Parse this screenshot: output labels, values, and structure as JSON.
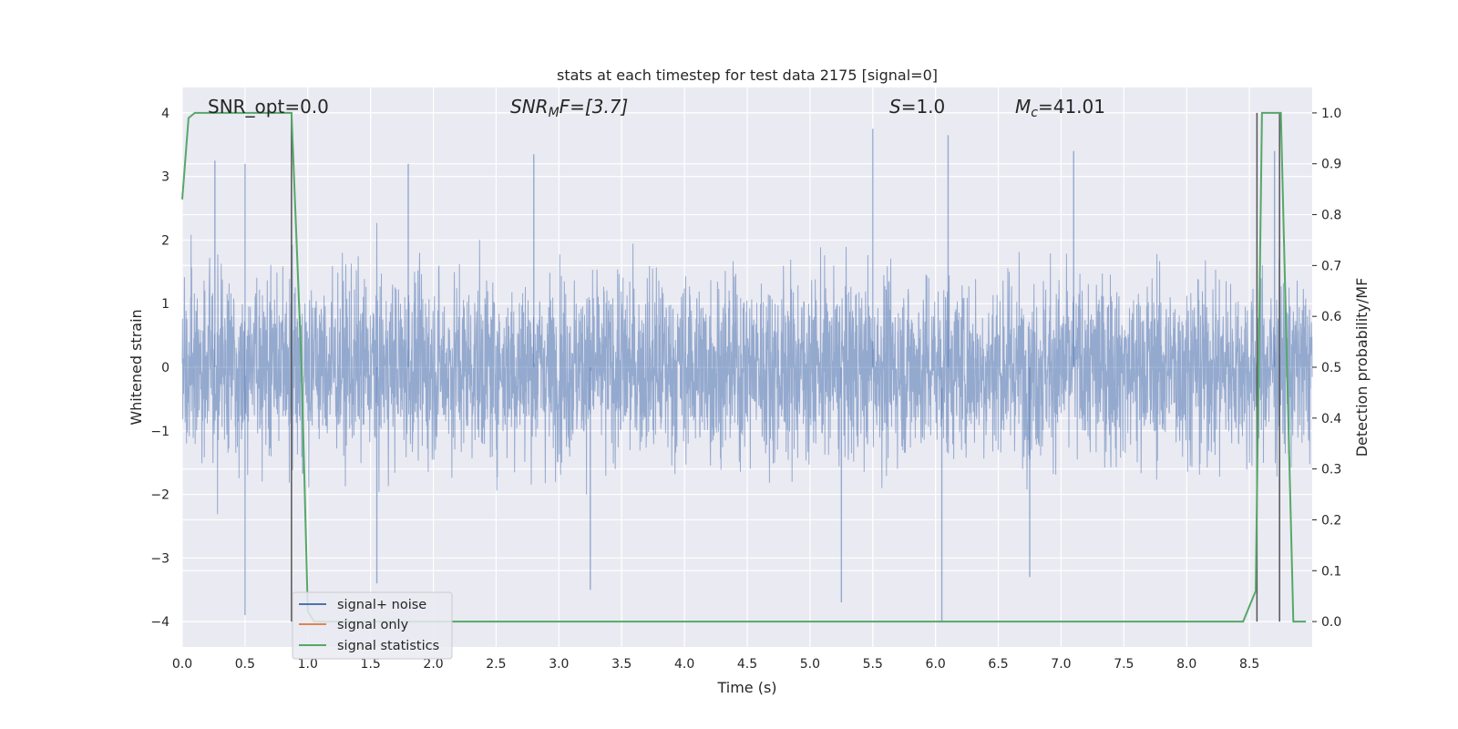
{
  "chart_data": {
    "type": "line",
    "title": "stats at each timestep for test data 2175 [signal=0]",
    "xlabel": "Time (s)",
    "ylabel": "Whitened strain",
    "ylabel_right": "Detection probability/MF",
    "xlim": [
      0.0,
      9.0
    ],
    "ylim": [
      -4.4,
      4.4
    ],
    "ylim_right": [
      -0.05,
      1.05
    ],
    "x_ticks": [
      "0.0",
      "0.5",
      "1.0",
      "1.5",
      "2.0",
      "2.5",
      "3.0",
      "3.5",
      "4.0",
      "4.5",
      "5.0",
      "5.5",
      "6.0",
      "6.5",
      "7.0",
      "7.5",
      "8.0",
      "8.5"
    ],
    "y_ticks": [
      "4",
      "3",
      "2",
      "1",
      "0",
      "−1",
      "−2",
      "−3",
      "−4"
    ],
    "y_right_ticks": [
      "1.0",
      "0.9",
      "0.8",
      "0.7",
      "0.6",
      "0.5",
      "0.4",
      "0.3",
      "0.2",
      "0.1",
      "0.0"
    ],
    "grid": true,
    "legend_position": "lower-left",
    "annotations": {
      "snr_opt": "SNR_opt=0.0",
      "snr_mf_main": "SNR",
      "snr_mf_sub": "M",
      "snr_mf_rest": "F=[3.7]",
      "s_main": "S",
      "s_rest": "=1.0",
      "mc_main": "M",
      "mc_sub": "c",
      "mc_rest": "=41.01"
    },
    "vlines_x": [
      0.87,
      8.56,
      8.74
    ],
    "series": [
      {
        "name": "signal+ noise",
        "color": "#4c72b0",
        "axis": "left",
        "description_range": [
          -4.0,
          3.9
        ],
        "peak_positive": [
          [
            0.26,
            3.25
          ],
          [
            0.5,
            3.2
          ],
          [
            1.8,
            3.2
          ],
          [
            2.8,
            3.35
          ],
          [
            5.5,
            3.75
          ],
          [
            6.1,
            3.65
          ],
          [
            7.1,
            3.4
          ],
          [
            8.7,
            3.4
          ]
        ],
        "peak_negative": [
          [
            0.5,
            -3.9
          ],
          [
            1.55,
            -3.4
          ],
          [
            3.25,
            -3.5
          ],
          [
            5.25,
            -3.7
          ],
          [
            6.05,
            -4.0
          ],
          [
            6.75,
            -3.3
          ]
        ]
      },
      {
        "name": "signal only",
        "color": "#dd8452",
        "axis": "left",
        "x": [],
        "y": []
      },
      {
        "name": "signal statistics",
        "color": "#55a868",
        "axis": "right",
        "x": [
          0.0,
          0.05,
          0.1,
          0.2,
          0.3,
          0.4,
          0.5,
          0.6,
          0.7,
          0.8,
          0.87,
          0.95,
          1.0,
          1.05,
          1.5,
          2.0,
          3.0,
          4.0,
          5.0,
          6.0,
          7.0,
          8.0,
          8.45,
          8.5,
          8.55,
          8.6,
          8.65,
          8.7,
          8.75,
          8.8,
          8.85,
          8.9,
          8.95
        ],
        "y": [
          0.83,
          0.99,
          1.0,
          1.0,
          1.0,
          1.0,
          1.0,
          1.0,
          1.0,
          1.0,
          1.0,
          0.5,
          0.02,
          0.0,
          0.0,
          0.0,
          0.0,
          0.0,
          0.0,
          0.0,
          0.0,
          0.0,
          0.0,
          0.03,
          0.06,
          1.0,
          1.0,
          1.0,
          1.0,
          0.5,
          0.0,
          0.0,
          0.0
        ]
      }
    ]
  }
}
